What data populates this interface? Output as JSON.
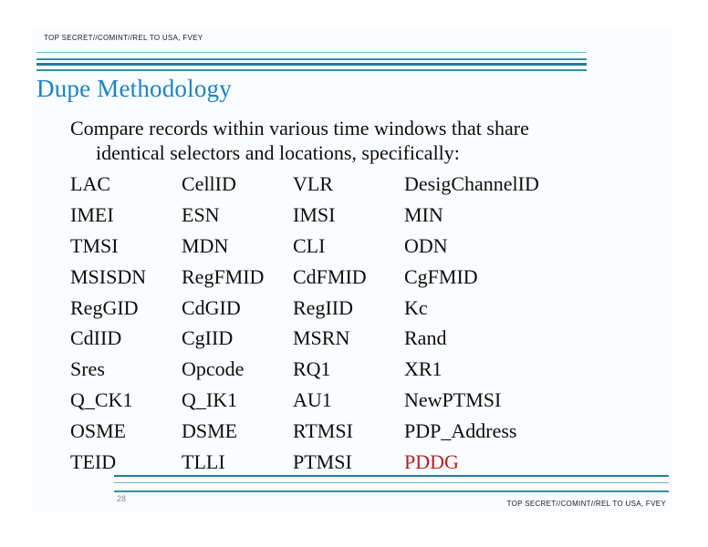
{
  "slide": {
    "header": {
      "classification": "TOP SECRET//COMINT//REL TO USA, FVEY"
    },
    "title": "Dupe Methodology",
    "intro": {
      "line1": "Compare records within various time windows that share",
      "line2": "identical selectors and locations, specifically:"
    },
    "grid": {
      "rows": [
        [
          "LAC",
          "CellID",
          "VLR",
          "DesigChannelID"
        ],
        [
          "IMEI",
          "ESN",
          "IMSI",
          "MIN"
        ],
        [
          "TMSI",
          "MDN",
          "CLI",
          "ODN"
        ],
        [
          "MSISDN",
          "RegFMID",
          "CdFMID",
          "CgFMID"
        ],
        [
          "RegGID",
          "CdGID",
          "RegIID",
          "Kc"
        ],
        [
          "CdIID",
          "CgIID",
          "MSRN",
          "Rand"
        ],
        [
          "Sres",
          "Opcode",
          "RQ1",
          "XR1"
        ],
        [
          "Q_CK1",
          "Q_IK1",
          "AU1",
          "NewPTMSI"
        ],
        [
          "OSME",
          "DSME",
          "RTMSI",
          "PDP_Address"
        ],
        [
          "TEID",
          "TLLI",
          "PTMSI",
          "PDDG"
        ]
      ],
      "highlight": {
        "row": 9,
        "col": 3,
        "color": "#b22222"
      }
    },
    "footer": {
      "page_number": "28",
      "classification": "TOP SECRET//COMINT//REL TO USA, FVEY"
    }
  },
  "colors": {
    "title_blue": "#1e82c2",
    "rule_dark": "#2a7b94",
    "rule_mid": "#3a8ca6",
    "rule_light": "#6ab5c9",
    "highlight_red": "#b22222",
    "slide_bg": "#fafdff"
  }
}
